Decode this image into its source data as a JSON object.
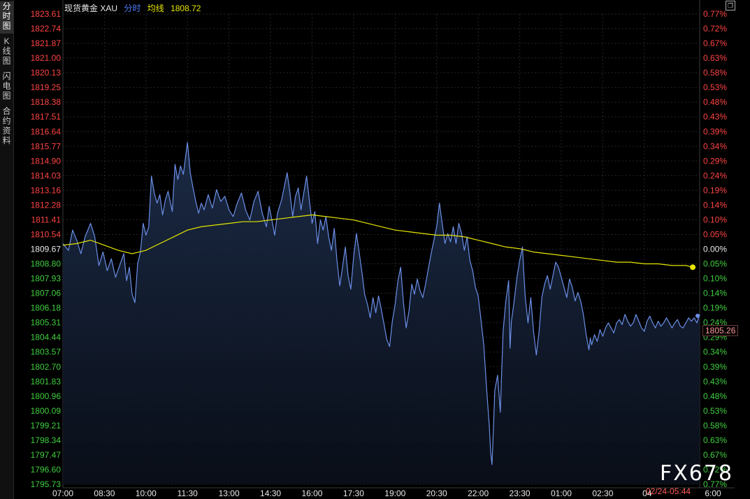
{
  "sidebar": {
    "tabs": [
      {
        "label": "分\n时\n图",
        "active": true
      },
      {
        "label": "K\n线\n图",
        "active": false
      },
      {
        "label": "闪\n电\n图",
        "active": false
      },
      {
        "label": "合\n约\n资\n料",
        "active": false
      }
    ]
  },
  "header": {
    "name": "现货黄金 XAU",
    "mode": "分时",
    "avg_label": "均线",
    "avg_value": "1808.72"
  },
  "close_icon": "restore-window-icon",
  "watermark": "FX678",
  "timestamp": "02/24-05:44",
  "last_price_tag": "1805.26",
  "colors": {
    "up": "#ff4444",
    "down": "#3fcf3f",
    "price_line": "#6b8fe8",
    "avg_line": "#e6e600",
    "header_mode": "#4f7fff",
    "header_name": "#e8e8e8",
    "header_avg": "#e6e600",
    "neutral": "#e8e8e8",
    "time_label": "#e8e8e8"
  },
  "chart_data": {
    "type": "line",
    "ref_price": 1809.67,
    "ylim": [
      1795.73,
      1823.61
    ],
    "left_ticks": [
      "1823.61",
      "1822.74",
      "1821.87",
      "1821.00",
      "1820.13",
      "1819.25",
      "1818.38",
      "1817.51",
      "1816.64",
      "1815.77",
      "1814.90",
      "1814.03",
      "1813.16",
      "1812.28",
      "1811.41",
      "1810.54",
      "1809.67",
      "1808.80",
      "1807.93",
      "1807.06",
      "1806.18",
      "1805.31",
      "1804.44",
      "1803.57",
      "1802.70",
      "1801.83",
      "1800.96",
      "1800.09",
      "1799.21",
      "1798.34",
      "1797.47",
      "1796.60",
      "1795.73"
    ],
    "right_ticks": [
      "0.77%",
      "0.72%",
      "0.67%",
      "0.63%",
      "0.58%",
      "0.53%",
      "0.48%",
      "0.43%",
      "0.39%",
      "0.34%",
      "0.29%",
      "0.24%",
      "0.19%",
      "0.14%",
      "0.10%",
      "0.05%",
      "0.00%",
      "0.05%",
      "0.10%",
      "0.14%",
      "0.19%",
      "0.24%",
      "0.29%",
      "0.34%",
      "0.39%",
      "0.43%",
      "0.48%",
      "0.53%",
      "0.58%",
      "0.63%",
      "0.67%",
      "0.72%",
      "0.77%"
    ],
    "x_labels": [
      "07:00",
      "08:30",
      "10:00",
      "11:30",
      "13:00",
      "14:30",
      "16:00",
      "17:30",
      "19:00",
      "20:30",
      "22:00",
      "23:30",
      "01:00",
      "02:30",
      "04",
      "6:00"
    ],
    "x_range_hours": [
      0,
      23
    ],
    "price": [
      [
        0.0,
        1810.0
      ],
      [
        0.2,
        1809.6
      ],
      [
        0.35,
        1810.8
      ],
      [
        0.5,
        1810.2
      ],
      [
        0.65,
        1809.4
      ],
      [
        0.8,
        1810.4
      ],
      [
        1.0,
        1811.2
      ],
      [
        1.15,
        1810.4
      ],
      [
        1.3,
        1808.7
      ],
      [
        1.45,
        1809.5
      ],
      [
        1.6,
        1808.4
      ],
      [
        1.75,
        1809.1
      ],
      [
        1.9,
        1808.0
      ],
      [
        2.05,
        1808.7
      ],
      [
        2.2,
        1809.4
      ],
      [
        2.3,
        1807.8
      ],
      [
        2.4,
        1808.6
      ],
      [
        2.5,
        1807.0
      ],
      [
        2.6,
        1806.5
      ],
      [
        2.7,
        1808.8
      ],
      [
        2.8,
        1809.5
      ],
      [
        2.9,
        1811.2
      ],
      [
        3.0,
        1810.5
      ],
      [
        3.1,
        1811.0
      ],
      [
        3.2,
        1814.0
      ],
      [
        3.3,
        1813.0
      ],
      [
        3.4,
        1812.4
      ],
      [
        3.5,
        1812.9
      ],
      [
        3.6,
        1811.7
      ],
      [
        3.7,
        1812.6
      ],
      [
        3.8,
        1813.1
      ],
      [
        3.95,
        1811.9
      ],
      [
        4.05,
        1814.7
      ],
      [
        4.15,
        1813.8
      ],
      [
        4.25,
        1814.6
      ],
      [
        4.35,
        1814.1
      ],
      [
        4.45,
        1815.4
      ],
      [
        4.5,
        1816.0
      ],
      [
        4.6,
        1814.2
      ],
      [
        4.7,
        1813.3
      ],
      [
        4.8,
        1812.5
      ],
      [
        4.9,
        1811.8
      ],
      [
        5.0,
        1812.4
      ],
      [
        5.1,
        1812.0
      ],
      [
        5.25,
        1812.9
      ],
      [
        5.4,
        1812.1
      ],
      [
        5.55,
        1813.2
      ],
      [
        5.7,
        1812.5
      ],
      [
        5.85,
        1812.8
      ],
      [
        6.0,
        1812.0
      ],
      [
        6.15,
        1811.6
      ],
      [
        6.3,
        1812.4
      ],
      [
        6.45,
        1813.0
      ],
      [
        6.6,
        1812.0
      ],
      [
        6.75,
        1811.4
      ],
      [
        6.9,
        1812.5
      ],
      [
        7.05,
        1813.1
      ],
      [
        7.2,
        1811.8
      ],
      [
        7.35,
        1811.0
      ],
      [
        7.45,
        1812.2
      ],
      [
        7.55,
        1811.4
      ],
      [
        7.65,
        1810.5
      ],
      [
        7.75,
        1811.8
      ],
      [
        7.9,
        1812.6
      ],
      [
        8.0,
        1813.4
      ],
      [
        8.1,
        1814.2
      ],
      [
        8.2,
        1813.0
      ],
      [
        8.3,
        1811.6
      ],
      [
        8.4,
        1812.8
      ],
      [
        8.5,
        1813.3
      ],
      [
        8.6,
        1812.0
      ],
      [
        8.7,
        1813.0
      ],
      [
        8.8,
        1814.0
      ],
      [
        8.9,
        1812.6
      ],
      [
        9.0,
        1811.2
      ],
      [
        9.1,
        1811.9
      ],
      [
        9.2,
        1810.0
      ],
      [
        9.3,
        1811.4
      ],
      [
        9.4,
        1810.8
      ],
      [
        9.5,
        1811.6
      ],
      [
        9.6,
        1810.4
      ],
      [
        9.7,
        1809.6
      ],
      [
        9.8,
        1810.9
      ],
      [
        9.9,
        1809.0
      ],
      [
        10.0,
        1807.5
      ],
      [
        10.1,
        1808.6
      ],
      [
        10.2,
        1809.8
      ],
      [
        10.3,
        1808.1
      ],
      [
        10.4,
        1807.3
      ],
      [
        10.5,
        1809.2
      ],
      [
        10.6,
        1810.6
      ],
      [
        10.7,
        1809.5
      ],
      [
        10.8,
        1808.3
      ],
      [
        10.9,
        1807.0
      ],
      [
        11.0,
        1806.4
      ],
      [
        11.1,
        1805.6
      ],
      [
        11.2,
        1806.8
      ],
      [
        11.3,
        1805.9
      ],
      [
        11.4,
        1806.9
      ],
      [
        11.5,
        1806.1
      ],
      [
        11.6,
        1805.2
      ],
      [
        11.7,
        1804.3
      ],
      [
        11.8,
        1803.9
      ],
      [
        11.9,
        1805.4
      ],
      [
        12.0,
        1806.4
      ],
      [
        12.1,
        1807.8
      ],
      [
        12.2,
        1808.6
      ],
      [
        12.3,
        1806.5
      ],
      [
        12.4,
        1805.0
      ],
      [
        12.5,
        1806.0
      ],
      [
        12.6,
        1807.6
      ],
      [
        12.7,
        1807.0
      ],
      [
        12.8,
        1807.9
      ],
      [
        12.9,
        1807.2
      ],
      [
        13.0,
        1806.8
      ],
      [
        13.1,
        1807.6
      ],
      [
        13.2,
        1808.5
      ],
      [
        13.3,
        1809.4
      ],
      [
        13.4,
        1810.2
      ],
      [
        13.5,
        1811.0
      ],
      [
        13.6,
        1812.4
      ],
      [
        13.7,
        1811.2
      ],
      [
        13.8,
        1810.0
      ],
      [
        13.9,
        1810.6
      ],
      [
        14.0,
        1810.1
      ],
      [
        14.1,
        1811.0
      ],
      [
        14.2,
        1810.0
      ],
      [
        14.3,
        1811.2
      ],
      [
        14.4,
        1810.6
      ],
      [
        14.5,
        1809.6
      ],
      [
        14.6,
        1810.4
      ],
      [
        14.7,
        1809.0
      ],
      [
        14.8,
        1808.4
      ],
      [
        14.9,
        1807.4
      ],
      [
        15.0,
        1806.9
      ],
      [
        15.1,
        1805.5
      ],
      [
        15.2,
        1804.0
      ],
      [
        15.3,
        1801.5
      ],
      [
        15.4,
        1799.2
      ],
      [
        15.45,
        1797.6
      ],
      [
        15.5,
        1796.9
      ],
      [
        15.55,
        1799.0
      ],
      [
        15.6,
        1801.3
      ],
      [
        15.7,
        1802.2
      ],
      [
        15.8,
        1800.0
      ],
      [
        15.85,
        1802.5
      ],
      [
        15.9,
        1804.8
      ],
      [
        16.0,
        1806.6
      ],
      [
        16.1,
        1807.8
      ],
      [
        16.15,
        1803.8
      ],
      [
        16.2,
        1805.4
      ],
      [
        16.3,
        1806.6
      ],
      [
        16.4,
        1808.0
      ],
      [
        16.5,
        1809.0
      ],
      [
        16.6,
        1809.8
      ],
      [
        16.65,
        1808.2
      ],
      [
        16.7,
        1806.8
      ],
      [
        16.8,
        1805.3
      ],
      [
        16.9,
        1806.8
      ],
      [
        17.0,
        1804.8
      ],
      [
        17.1,
        1803.4
      ],
      [
        17.2,
        1804.8
      ],
      [
        17.3,
        1806.8
      ],
      [
        17.4,
        1807.6
      ],
      [
        17.5,
        1808.1
      ],
      [
        17.6,
        1807.3
      ],
      [
        17.7,
        1808.1
      ],
      [
        17.8,
        1808.9
      ],
      [
        17.9,
        1808.6
      ],
      [
        18.0,
        1808.0
      ],
      [
        18.1,
        1807.4
      ],
      [
        18.2,
        1806.8
      ],
      [
        18.3,
        1807.9
      ],
      [
        18.4,
        1807.4
      ],
      [
        18.5,
        1806.6
      ],
      [
        18.6,
        1807.1
      ],
      [
        18.7,
        1806.6
      ],
      [
        18.8,
        1805.8
      ],
      [
        18.9,
        1804.6
      ],
      [
        19.0,
        1803.7
      ],
      [
        19.05,
        1804.4
      ],
      [
        19.1,
        1804.0
      ],
      [
        19.2,
        1804.6
      ],
      [
        19.3,
        1804.2
      ],
      [
        19.4,
        1804.9
      ],
      [
        19.5,
        1804.5
      ],
      [
        19.6,
        1805.0
      ],
      [
        19.7,
        1805.3
      ],
      [
        19.8,
        1805.0
      ],
      [
        19.9,
        1804.7
      ],
      [
        20.0,
        1805.3
      ],
      [
        20.1,
        1805.5
      ],
      [
        20.2,
        1805.2
      ],
      [
        20.3,
        1805.8
      ],
      [
        20.4,
        1805.4
      ],
      [
        20.5,
        1805.1
      ],
      [
        20.6,
        1805.3
      ],
      [
        20.7,
        1805.8
      ],
      [
        20.8,
        1805.4
      ],
      [
        20.9,
        1805.0
      ],
      [
        21.0,
        1804.8
      ],
      [
        21.1,
        1805.4
      ],
      [
        21.2,
        1805.7
      ],
      [
        21.3,
        1805.3
      ],
      [
        21.4,
        1805.0
      ],
      [
        21.5,
        1805.4
      ],
      [
        21.6,
        1805.1
      ],
      [
        21.7,
        1805.3
      ],
      [
        21.8,
        1805.6
      ],
      [
        21.9,
        1805.3
      ],
      [
        22.0,
        1805.0
      ],
      [
        22.1,
        1805.3
      ],
      [
        22.2,
        1805.5
      ],
      [
        22.3,
        1805.1
      ],
      [
        22.4,
        1805.0
      ],
      [
        22.5,
        1805.3
      ],
      [
        22.6,
        1805.6
      ],
      [
        22.7,
        1805.4
      ],
      [
        22.8,
        1805.6
      ],
      [
        22.9,
        1805.3
      ],
      [
        23.0,
        1805.8
      ]
    ],
    "avg": [
      [
        0.0,
        1809.9
      ],
      [
        0.5,
        1810.0
      ],
      [
        1.0,
        1810.2
      ],
      [
        1.5,
        1809.9
      ],
      [
        2.0,
        1809.6
      ],
      [
        2.5,
        1809.4
      ],
      [
        3.0,
        1809.6
      ],
      [
        3.5,
        1810.0
      ],
      [
        4.0,
        1810.4
      ],
      [
        4.5,
        1810.8
      ],
      [
        5.0,
        1811.0
      ],
      [
        5.5,
        1811.1
      ],
      [
        6.0,
        1811.2
      ],
      [
        6.5,
        1811.3
      ],
      [
        7.0,
        1811.3
      ],
      [
        7.5,
        1811.4
      ],
      [
        8.0,
        1811.5
      ],
      [
        8.5,
        1811.6
      ],
      [
        9.0,
        1811.7
      ],
      [
        9.5,
        1811.6
      ],
      [
        10.0,
        1811.5
      ],
      [
        10.5,
        1811.4
      ],
      [
        11.0,
        1811.2
      ],
      [
        11.5,
        1811.0
      ],
      [
        12.0,
        1810.8
      ],
      [
        12.5,
        1810.7
      ],
      [
        13.0,
        1810.6
      ],
      [
        13.5,
        1810.5
      ],
      [
        14.0,
        1810.5
      ],
      [
        14.5,
        1810.4
      ],
      [
        15.0,
        1810.2
      ],
      [
        15.5,
        1810.0
      ],
      [
        16.0,
        1809.8
      ],
      [
        16.5,
        1809.7
      ],
      [
        17.0,
        1809.5
      ],
      [
        17.5,
        1809.4
      ],
      [
        18.0,
        1809.3
      ],
      [
        18.5,
        1809.2
      ],
      [
        19.0,
        1809.1
      ],
      [
        19.5,
        1809.0
      ],
      [
        20.0,
        1808.9
      ],
      [
        20.5,
        1808.9
      ],
      [
        21.0,
        1808.8
      ],
      [
        21.5,
        1808.8
      ],
      [
        22.0,
        1808.7
      ],
      [
        22.5,
        1808.7
      ],
      [
        22.75,
        1808.6
      ]
    ]
  }
}
